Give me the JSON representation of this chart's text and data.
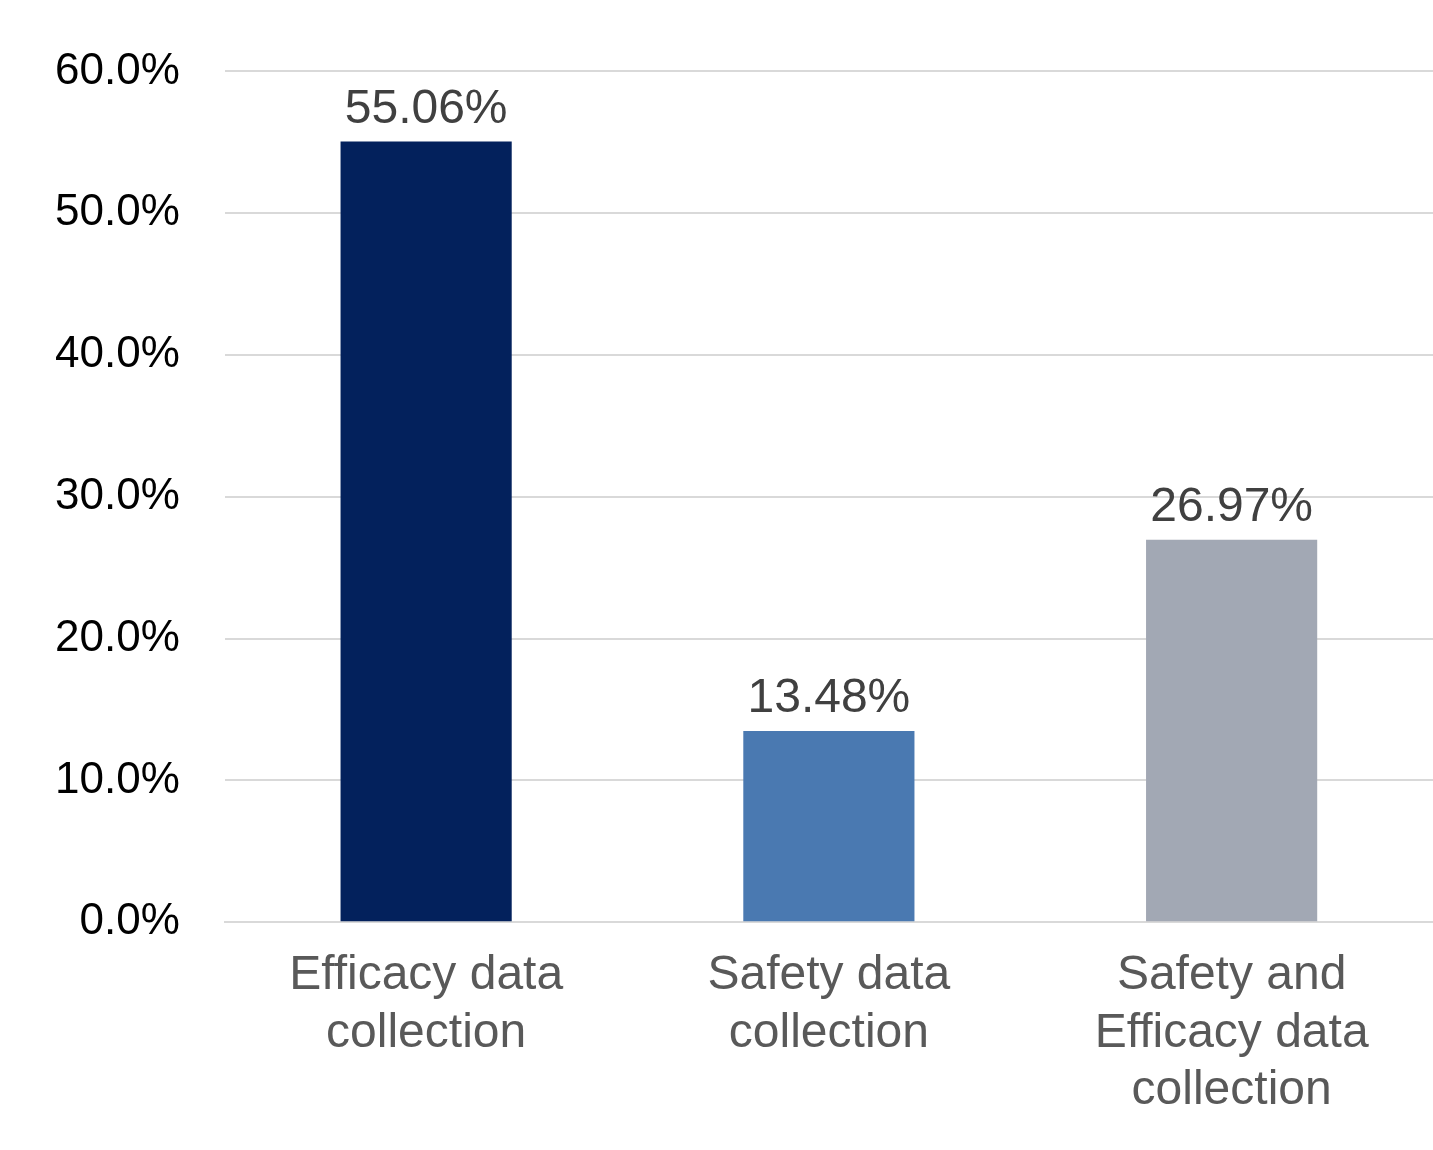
{
  "chart_data": {
    "type": "bar",
    "categories": [
      "Efficacy data collection",
      "Safety data collection",
      "Safety and Efficacy data collection"
    ],
    "values": [
      55.06,
      13.48,
      26.97
    ],
    "colors": [
      "#03215c",
      "#4a79b1",
      "#a2a8b4"
    ],
    "value_labels": [
      "55.06%",
      "13.48%",
      "26.97%"
    ],
    "ylim": [
      0,
      60
    ],
    "yticks": [
      {
        "value": 0,
        "label": "0.0%"
      },
      {
        "value": 10,
        "label": "10.0%"
      },
      {
        "value": 20,
        "label": "20.0%"
      },
      {
        "value": 30,
        "label": "30.0%"
      },
      {
        "value": 40,
        "label": "40.0%"
      },
      {
        "value": 50,
        "label": "50.0%"
      },
      {
        "value": 60,
        "label": "60.0%"
      }
    ],
    "grid": "y",
    "legend": false
  }
}
